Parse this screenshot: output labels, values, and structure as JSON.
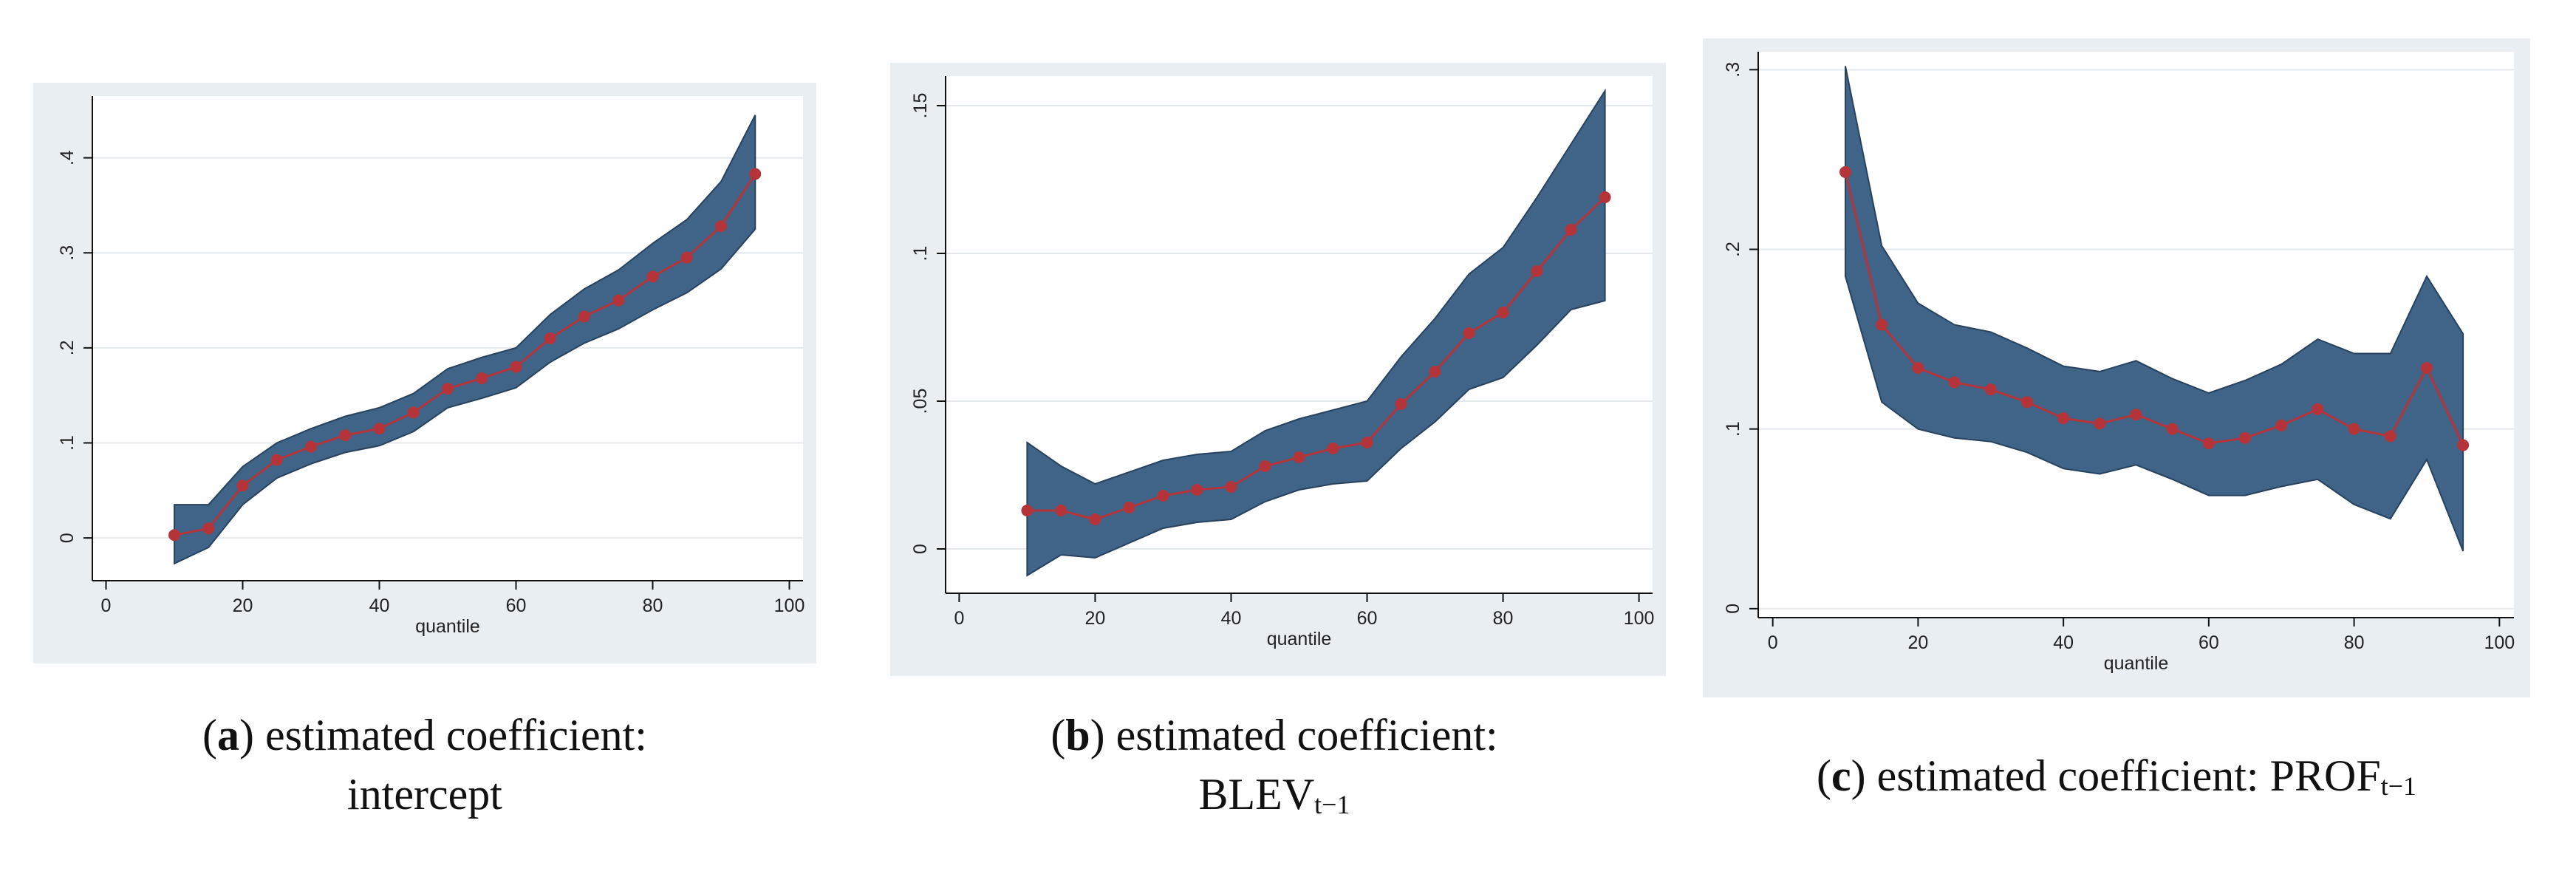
{
  "colors": {
    "panel_bg": "#e8eef2",
    "plot_bg": "#ffffff",
    "band": "#3f6488",
    "band_stroke": "#27425e",
    "line": "#b5343a",
    "grid": "#e4e8ec"
  },
  "captions": [
    {
      "letter": "a",
      "open": "(",
      "close": ")",
      "line1": " estimated coefficient:",
      "line2": "intercept",
      "sub": ""
    },
    {
      "letter": "b",
      "open": "(",
      "close": ")",
      "line1": " estimated coefficient:",
      "line2": "BLEV",
      "sub": "t−1"
    },
    {
      "letter": "c",
      "open": "(",
      "close": ")",
      "line1": " estimated coefficient: PROF",
      "line2": "",
      "sub": "t−1"
    }
  ],
  "chart_data": [
    {
      "type": "line",
      "title": "",
      "xlabel": "quantile",
      "ylabel": "",
      "xlim": [
        -2,
        102
      ],
      "ylim": [
        -0.045,
        0.465
      ],
      "xticks": [
        0,
        20,
        40,
        60,
        80,
        100
      ],
      "xtick_labels": [
        "0",
        "20",
        "40",
        "60",
        "80",
        "100"
      ],
      "yticks": [
        0,
        0.1,
        0.2,
        0.3,
        0.4
      ],
      "ytick_labels": [
        "0",
        ".1",
        ".2",
        ".3",
        ".4"
      ],
      "x": [
        10,
        15,
        20,
        25,
        30,
        35,
        40,
        45,
        50,
        55,
        60,
        65,
        70,
        75,
        80,
        85,
        90,
        95
      ],
      "series": [
        {
          "name": "estimate",
          "values": [
            0.003,
            0.01,
            0.055,
            0.082,
            0.096,
            0.108,
            0.115,
            0.132,
            0.157,
            0.168,
            0.18,
            0.21,
            0.233,
            0.25,
            0.275,
            0.295,
            0.328,
            0.383
          ]
        },
        {
          "name": "upper",
          "values": [
            0.035,
            0.035,
            0.075,
            0.1,
            0.115,
            0.128,
            0.137,
            0.152,
            0.178,
            0.19,
            0.2,
            0.235,
            0.262,
            0.282,
            0.31,
            0.335,
            0.375,
            0.445
          ]
        },
        {
          "name": "lower",
          "values": [
            -0.027,
            -0.01,
            0.035,
            0.063,
            0.078,
            0.09,
            0.097,
            0.112,
            0.137,
            0.147,
            0.158,
            0.185,
            0.205,
            0.22,
            0.24,
            0.258,
            0.283,
            0.325
          ]
        }
      ]
    },
    {
      "type": "line",
      "title": "",
      "xlabel": "quantile",
      "ylabel": "",
      "xlim": [
        -2,
        102
      ],
      "ylim": [
        -0.015,
        0.16
      ],
      "xticks": [
        0,
        20,
        40,
        60,
        80,
        100
      ],
      "xtick_labels": [
        "0",
        "20",
        "40",
        "60",
        "80",
        "100"
      ],
      "yticks": [
        0,
        0.05,
        0.1,
        0.15
      ],
      "ytick_labels": [
        "0",
        ".05",
        ".1",
        ".15"
      ],
      "x": [
        10,
        15,
        20,
        25,
        30,
        35,
        40,
        45,
        50,
        55,
        60,
        65,
        70,
        75,
        80,
        85,
        90,
        95
      ],
      "series": [
        {
          "name": "estimate",
          "values": [
            0.013,
            0.013,
            0.01,
            0.014,
            0.018,
            0.02,
            0.021,
            0.028,
            0.031,
            0.034,
            0.036,
            0.049,
            0.06,
            0.073,
            0.08,
            0.094,
            0.108,
            0.119
          ]
        },
        {
          "name": "upper",
          "values": [
            0.036,
            0.028,
            0.022,
            0.026,
            0.03,
            0.032,
            0.033,
            0.04,
            0.044,
            0.047,
            0.05,
            0.065,
            0.078,
            0.093,
            0.102,
            0.119,
            0.137,
            0.155
          ]
        },
        {
          "name": "lower",
          "values": [
            -0.009,
            -0.002,
            -0.003,
            0.002,
            0.007,
            0.009,
            0.01,
            0.016,
            0.02,
            0.022,
            0.023,
            0.034,
            0.043,
            0.054,
            0.058,
            0.069,
            0.081,
            0.084
          ]
        }
      ]
    },
    {
      "type": "line",
      "title": "",
      "xlabel": "quantile",
      "ylabel": "",
      "xlim": [
        -2,
        102
      ],
      "ylim": [
        -0.005,
        0.31
      ],
      "xticks": [
        0,
        20,
        40,
        60,
        80,
        100
      ],
      "xtick_labels": [
        "0",
        "20",
        "40",
        "60",
        "80",
        "100"
      ],
      "yticks": [
        0,
        0.1,
        0.2,
        0.3
      ],
      "ytick_labels": [
        "0",
        ".1",
        ".2",
        ".3"
      ],
      "x": [
        10,
        15,
        20,
        25,
        30,
        35,
        40,
        45,
        50,
        55,
        60,
        65,
        70,
        75,
        80,
        85,
        90,
        95
      ],
      "series": [
        {
          "name": "estimate",
          "values": [
            0.243,
            0.158,
            0.134,
            0.126,
            0.122,
            0.115,
            0.106,
            0.103,
            0.108,
            0.1,
            0.092,
            0.095,
            0.102,
            0.111,
            0.1,
            0.096,
            0.134,
            0.091
          ]
        },
        {
          "name": "upper",
          "values": [
            0.302,
            0.202,
            0.17,
            0.158,
            0.154,
            0.145,
            0.135,
            0.132,
            0.138,
            0.128,
            0.12,
            0.127,
            0.136,
            0.15,
            0.142,
            0.142,
            0.185,
            0.153
          ]
        },
        {
          "name": "lower",
          "values": [
            0.185,
            0.115,
            0.1,
            0.095,
            0.093,
            0.087,
            0.078,
            0.075,
            0.08,
            0.072,
            0.063,
            0.063,
            0.068,
            0.072,
            0.058,
            0.05,
            0.083,
            0.032
          ]
        }
      ]
    }
  ]
}
